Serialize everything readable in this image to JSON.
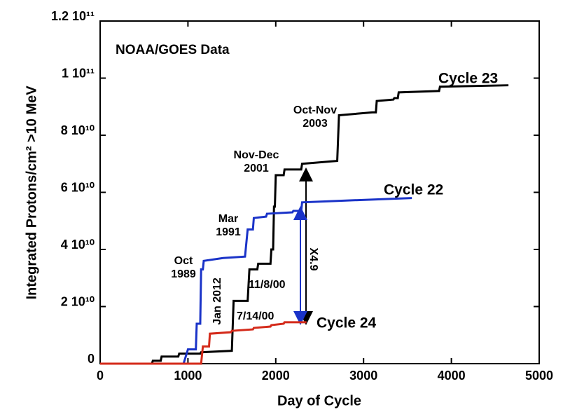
{
  "chart_data": {
    "type": "line",
    "title": "NOAA/GOES Data",
    "x_label": "Day of Cycle",
    "y_label": "Integrated Protons/cm² >10 MeV",
    "xlim": [
      0,
      5000
    ],
    "xticks": [
      0,
      1000,
      2000,
      3000,
      4000,
      5000
    ],
    "ylim": [
      0,
      120000000000.0
    ],
    "yticks": [
      0,
      {
        "value": 20000000000.0,
        "label": "2 10¹⁰"
      },
      {
        "value": 40000000000.0,
        "label": "4 10¹⁰"
      },
      {
        "value": 60000000000.0,
        "label": "6 10¹⁰"
      },
      {
        "value": 80000000000.0,
        "label": "8 10¹⁰"
      },
      {
        "value": 100000000000.0,
        "label": "1 10¹¹"
      },
      {
        "value": 120000000000.0,
        "label": "1.2 10¹¹"
      }
    ],
    "series": [
      {
        "name": "Cycle 23",
        "color": "#000000",
        "x": [
          0,
          590,
          600,
          690,
          700,
          890,
          900,
          1140,
          1150,
          1500,
          1520,
          1680,
          1700,
          1790,
          1800,
          1940,
          1950,
          1970,
          1980,
          1990,
          2000,
          2090,
          2100,
          2290,
          2300,
          2700,
          2720,
          3100,
          3110,
          3140,
          3150,
          3340,
          3350,
          3390,
          3400,
          3850,
          3860,
          3870,
          4650
        ],
        "values": [
          0,
          0,
          1000000000.0,
          1000000000.0,
          2500000000.0,
          2500000000.0,
          3500000000.0,
          3500000000.0,
          4000000000.0,
          4500000000.0,
          22000000000.0,
          22000000000.0,
          33000000000.0,
          33000000000.0,
          35000000000.0,
          35000000000.0,
          40000000000.0,
          40000000000.0,
          55000000000.0,
          55000000000.0,
          66000000000.0,
          66000000000.0,
          68000000000.0,
          68000000000.0,
          70000000000.0,
          71000000000.0,
          87000000000.0,
          88000000000.0,
          88000000000.0,
          88000000000.0,
          92000000000.0,
          92500000000.0,
          93000000000.0,
          93000000000.0,
          95000000000.0,
          95500000000.0,
          95500000000.0,
          97000000000.0,
          97500000000.0
        ]
      },
      {
        "name": "Cycle 22",
        "color": "#1a33c8",
        "x": [
          0,
          950,
          1000,
          1090,
          1100,
          1140,
          1150,
          1170,
          1180,
          1400,
          1650,
          1680,
          1740,
          1750,
          1890,
          1900,
          2190,
          2200,
          2290,
          2300,
          2700,
          3550
        ],
        "values": [
          0,
          0,
          5000000000.0,
          5000000000.0,
          14000000000.0,
          14000000000.0,
          33000000000.0,
          33000000000.0,
          36000000000.0,
          37000000000.0,
          37500000000.0,
          47000000000.0,
          47000000000.0,
          51000000000.0,
          51500000000.0,
          52500000000.0,
          53000000000.0,
          53500000000.0,
          53500000000.0,
          56500000000.0,
          57000000000.0,
          58000000000.0
        ]
      },
      {
        "name": "Cycle 24",
        "color": "#d42a1a",
        "x": [
          0,
          1150,
          1170,
          1240,
          1250,
          1490,
          1500,
          1740,
          1750,
          1940,
          1950,
          2090,
          2100,
          2350
        ],
        "values": [
          0,
          0,
          6000000000.0,
          6000000000.0,
          10500000000.0,
          11000000000.0,
          11500000000.0,
          12000000000.0,
          12500000000.0,
          13000000000.0,
          13500000000.0,
          14000000000.0,
          14500000000.0,
          14500000000.0
        ]
      }
    ],
    "annotations": [
      {
        "lines": [
          "Oct-Nov",
          "2003"
        ],
        "color": "#555555"
      },
      {
        "lines": [
          "Nov-Dec",
          "2001"
        ],
        "color": "#555555"
      },
      {
        "lines": [
          "Mar",
          "1991"
        ],
        "color": "#1a33c8"
      },
      {
        "lines": [
          "Oct",
          "1989"
        ],
        "color": "#1a33c8"
      },
      {
        "lines": [
          "Jan 2012"
        ],
        "color": "#d42a1a"
      },
      {
        "lines": [
          "11/8/00"
        ],
        "color": "#555555"
      },
      {
        "lines": [
          "7/14/00"
        ],
        "color": "#555555"
      },
      {
        "lines": [
          "X4.9"
        ],
        "color": "#000000"
      }
    ]
  }
}
